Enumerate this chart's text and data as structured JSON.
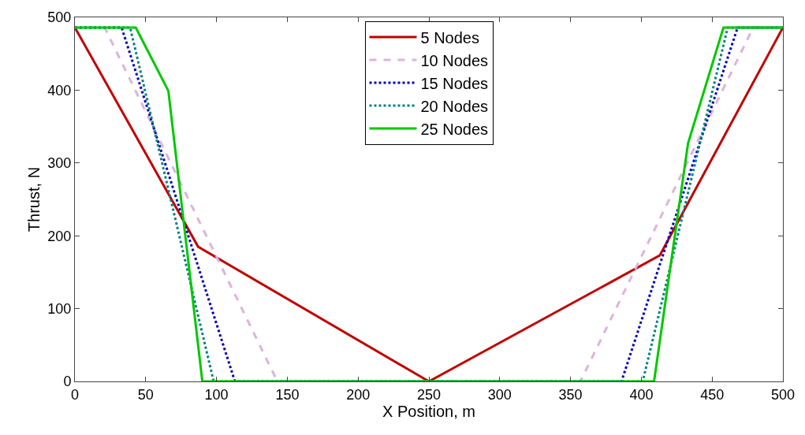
{
  "chart_data": {
    "type": "line",
    "xlabel": "X Position, m",
    "ylabel": "Thrust, N",
    "xlim": [
      0,
      500
    ],
    "ylim": [
      0,
      500
    ],
    "xticks": [
      0,
      50,
      100,
      150,
      200,
      250,
      300,
      350,
      400,
      450,
      500
    ],
    "yticks": [
      0,
      100,
      200,
      300,
      400,
      500
    ],
    "legend": "top",
    "marker": "none",
    "series": [
      {
        "name": "5 Nodes",
        "color": "#c00000",
        "line_style": "solid",
        "x": [
          0,
          87,
          250,
          413,
          500
        ],
        "values": [
          486,
          185,
          0,
          173,
          486
        ]
      },
      {
        "name": "10 Nodes",
        "color": "#dcb4dc",
        "line_style": "dashed",
        "x": [
          0,
          21,
          143,
          357,
          479,
          500
        ],
        "values": [
          486,
          486,
          0,
          0,
          486,
          486
        ]
      },
      {
        "name": "15 Nodes",
        "color": "#0000b4",
        "line_style": "dotted",
        "x": [
          0,
          33,
          113,
          386,
          468,
          500
        ],
        "values": [
          486,
          486,
          0,
          0,
          486,
          486
        ]
      },
      {
        "name": "20 Nodes",
        "color": "#008080",
        "line_style": "dotted",
        "x": [
          0,
          39,
          98,
          401,
          461,
          500
        ],
        "values": [
          486,
          486,
          0,
          0,
          486,
          486
        ]
      },
      {
        "name": "25 Nodes",
        "color": "#00c800",
        "line_style": "solid",
        "x": [
          0,
          43,
          66,
          90,
          409,
          433,
          458,
          500
        ],
        "values": [
          486,
          486,
          399,
          0,
          0,
          327,
          486,
          486
        ]
      }
    ]
  }
}
